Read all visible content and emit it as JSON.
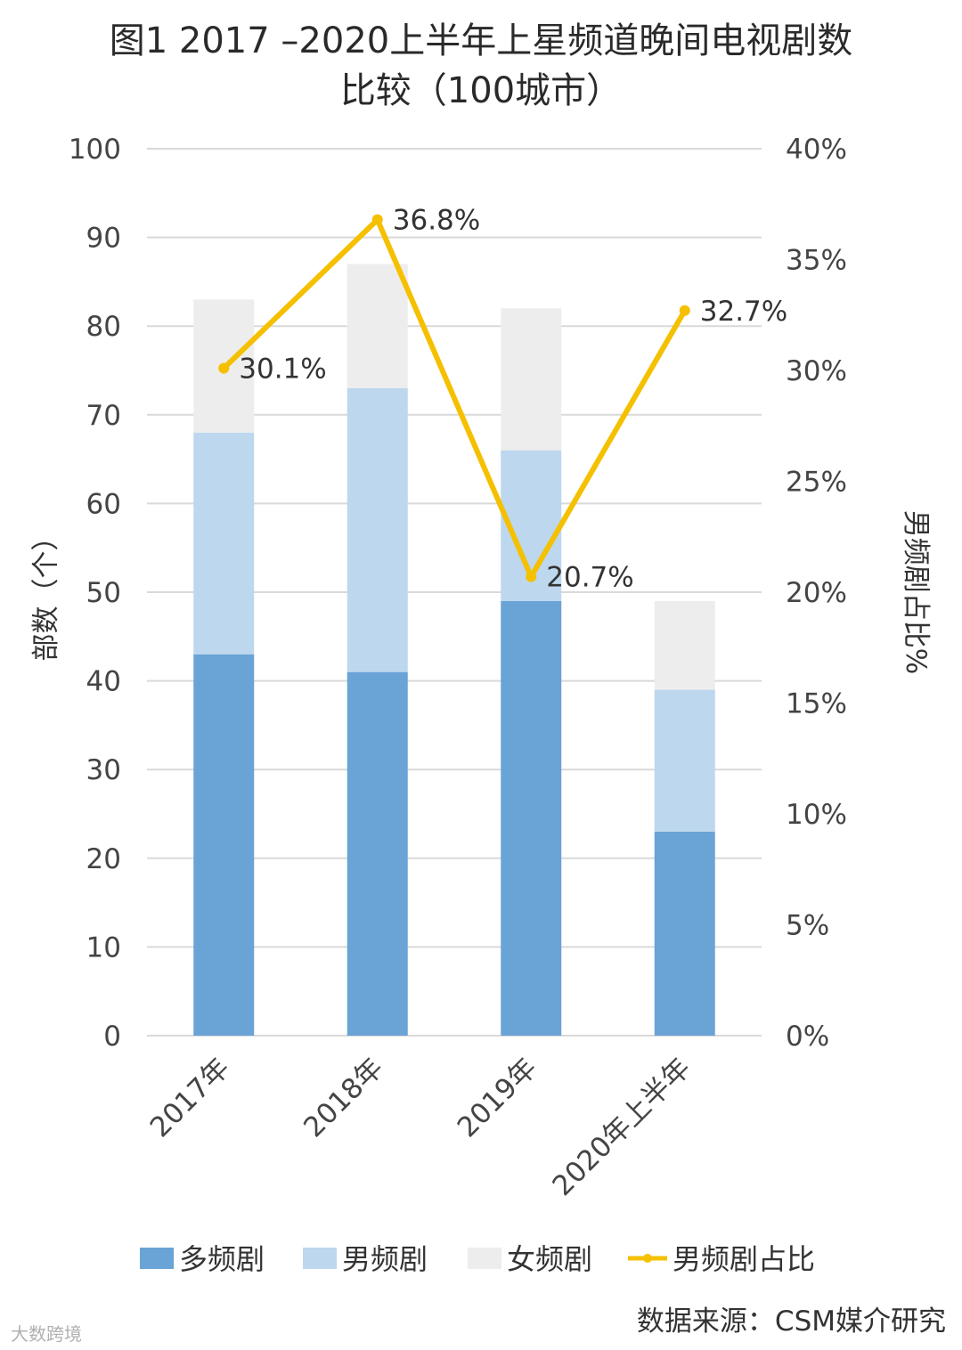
{
  "chart_data": {
    "type": "bar",
    "stacked": true,
    "title_line1": "图1  2017  –2020上半年上星频道晚间电视剧数",
    "title_line2": "比较（100城市）",
    "categories": [
      "2017年",
      "2018年",
      "2019年",
      "2020年上半年"
    ],
    "series": [
      {
        "name": "多频剧",
        "values": [
          43,
          41,
          49,
          23
        ],
        "color": "#6aa3d6"
      },
      {
        "name": "男频剧",
        "values": [
          25,
          32,
          17,
          16
        ],
        "color": "#bdd7ee"
      },
      {
        "name": "女频剧",
        "values": [
          15,
          14,
          16,
          10
        ],
        "color": "#ededed"
      }
    ],
    "line_series": {
      "name": "男频剧占比",
      "values": [
        30.1,
        36.8,
        20.7,
        32.7
      ],
      "labels": [
        "30.1%",
        "36.8%",
        "20.7%",
        "32.7%"
      ],
      "color": "#f5c000",
      "axis": "right"
    },
    "ylabel": "部数（个）",
    "y2label": "男频剧占比%",
    "ylim": [
      0,
      100
    ],
    "y2lim": [
      0,
      40
    ],
    "yticks": [
      "0",
      "10",
      "20",
      "30",
      "40",
      "50",
      "60",
      "70",
      "80",
      "90",
      "100"
    ],
    "y2ticks": [
      "0%",
      "5%",
      "10%",
      "15%",
      "20%",
      "25%",
      "30%",
      "35%",
      "40%"
    ],
    "grid": true,
    "legend_position": "bottom"
  },
  "source": "数据来源：CSM媒介研究",
  "watermark": "大数跨境"
}
